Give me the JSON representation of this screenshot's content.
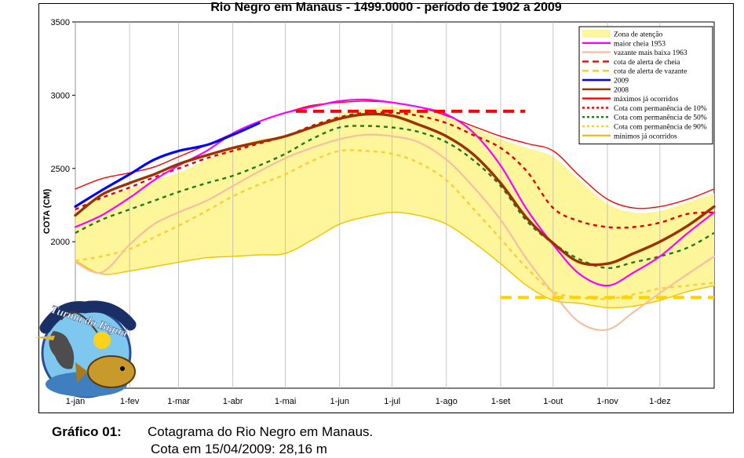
{
  "chart_data": {
    "type": "line",
    "title": "Rio Negro em Manaus - 1499.0000 - período de 1902 a 2009",
    "ylabel": "COTA (CM)",
    "xlabel": "",
    "ylim": [
      1000,
      3500
    ],
    "yticks": [
      2000,
      2500,
      3000,
      3500
    ],
    "x_tick_labels": [
      "1-jan",
      "1-fev",
      "1-mar",
      "1-abr",
      "1-mai",
      "1-jun",
      "1-jul",
      "1-ago",
      "1-set",
      "1-out",
      "1-nov",
      "1-dez"
    ],
    "x_tick_days": [
      0,
      31,
      59,
      90,
      120,
      151,
      181,
      212,
      243,
      273,
      304,
      334
    ],
    "xlim_days": [
      0,
      365
    ],
    "grid": "vertical",
    "legend_position": "top-right",
    "band": {
      "name": "Zona de atenção",
      "color": "#fff59a",
      "x": [
        0,
        15,
        31,
        45,
        59,
        75,
        90,
        105,
        120,
        135,
        151,
        166,
        181,
        196,
        212,
        227,
        243,
        258,
        273,
        288,
        304,
        319,
        334,
        350,
        365
      ],
      "lower": [
        1870,
        1780,
        1800,
        1830,
        1860,
        1890,
        1900,
        1910,
        1920,
        2010,
        2120,
        2170,
        2200,
        2180,
        2120,
        2000,
        1850,
        1700,
        1600,
        1580,
        1550,
        1560,
        1600,
        1660,
        1700
      ],
      "upper": [
        2200,
        2300,
        2360,
        2420,
        2470,
        2560,
        2640,
        2700,
        2720,
        2790,
        2870,
        2910,
        2920,
        2900,
        2850,
        2780,
        2700,
        2640,
        2580,
        2420,
        2260,
        2200,
        2210,
        2270,
        2330
      ]
    },
    "series": [
      {
        "name": "maior cheia 1953",
        "color": "#ff00ff",
        "width": 2.2,
        "dash": "",
        "x": [
          0,
          15,
          31,
          45,
          59,
          75,
          90,
          105,
          120,
          135,
          151,
          166,
          181,
          196,
          212,
          227,
          243,
          258,
          273,
          288,
          304,
          319,
          334,
          350,
          365
        ],
        "y": [
          2100,
          2180,
          2300,
          2420,
          2520,
          2620,
          2740,
          2820,
          2880,
          2920,
          2960,
          2970,
          2950,
          2920,
          2870,
          2750,
          2520,
          2220,
          1980,
          1780,
          1700,
          1790,
          1900,
          2060,
          2200
        ]
      },
      {
        "name": "vazante mais baixa 1963",
        "color": "#f5c0a2",
        "width": 2.2,
        "dash": "",
        "x": [
          0,
          15,
          31,
          45,
          59,
          75,
          90,
          105,
          120,
          135,
          151,
          166,
          181,
          196,
          212,
          227,
          243,
          258,
          273,
          288,
          304,
          319,
          334,
          350,
          365
        ],
        "y": [
          1860,
          1790,
          1980,
          2120,
          2200,
          2280,
          2380,
          2480,
          2570,
          2640,
          2700,
          2730,
          2720,
          2680,
          2560,
          2380,
          2150,
          1880,
          1650,
          1450,
          1400,
          1520,
          1650,
          1780,
          1900
        ]
      },
      {
        "name": "cota de alerta de cheia",
        "color": "#ff0000",
        "width": 4,
        "dash": "14 8",
        "x": [
          126,
          257
        ],
        "y": [
          2890,
          2890
        ]
      },
      {
        "name": "cota de alerta de vazante",
        "color": "#ffd200",
        "width": 4,
        "dash": "14 8",
        "x": [
          243,
          365
        ],
        "y": [
          1620,
          1620
        ]
      },
      {
        "name": "2009",
        "color": "#0000ff",
        "width": 3.2,
        "dash": "",
        "x": [
          0,
          15,
          31,
          45,
          59,
          75,
          90,
          105
        ],
        "y": [
          2240,
          2350,
          2460,
          2560,
          2620,
          2660,
          2730,
          2810
        ]
      },
      {
        "name": "2008",
        "color": "#993300",
        "width": 3.4,
        "dash": "",
        "x": [
          0,
          15,
          31,
          45,
          59,
          75,
          90,
          105,
          120,
          135,
          151,
          166,
          181,
          196,
          212,
          227,
          243,
          258,
          273,
          288,
          304,
          319,
          334,
          350,
          365
        ],
        "y": [
          2180,
          2320,
          2400,
          2460,
          2530,
          2590,
          2640,
          2680,
          2720,
          2780,
          2840,
          2870,
          2860,
          2800,
          2720,
          2600,
          2400,
          2160,
          1990,
          1860,
          1850,
          1920,
          2000,
          2110,
          2240
        ]
      },
      {
        "name": "máximos já ocorridos",
        "color": "#ff0000",
        "width": 1.4,
        "dash": "",
        "x": [
          0,
          15,
          31,
          45,
          59,
          75,
          90,
          105,
          120,
          135,
          151,
          166,
          181,
          196,
          212,
          227,
          243,
          258,
          273,
          288,
          304,
          319,
          334,
          350,
          365
        ],
        "y": [
          2360,
          2430,
          2470,
          2510,
          2580,
          2660,
          2740,
          2820,
          2880,
          2930,
          2950,
          2960,
          2950,
          2920,
          2860,
          2790,
          2720,
          2670,
          2620,
          2450,
          2290,
          2230,
          2240,
          2290,
          2360
        ]
      },
      {
        "name": "Cota com permanência de 10%",
        "color": "#e00000",
        "width": 2.4,
        "dash": "5 5",
        "x": [
          0,
          15,
          31,
          45,
          59,
          75,
          90,
          105,
          120,
          135,
          151,
          166,
          181,
          196,
          212,
          227,
          243,
          258,
          273,
          288,
          304,
          319,
          334,
          350,
          365
        ],
        "y": [
          2220,
          2300,
          2370,
          2440,
          2500,
          2570,
          2620,
          2670,
          2720,
          2790,
          2850,
          2880,
          2880,
          2860,
          2810,
          2730,
          2640,
          2480,
          2230,
          2140,
          2100,
          2100,
          2130,
          2190,
          2200
        ]
      },
      {
        "name": "Cota com permanência de 50%",
        "color": "#1f7a1f",
        "width": 2.4,
        "dash": "5 5",
        "x": [
          0,
          15,
          31,
          45,
          59,
          75,
          90,
          105,
          120,
          135,
          151,
          166,
          181,
          196,
          212,
          227,
          243,
          258,
          273,
          288,
          304,
          319,
          334,
          350,
          365
        ],
        "y": [
          2060,
          2150,
          2220,
          2280,
          2340,
          2400,
          2450,
          2520,
          2600,
          2700,
          2780,
          2790,
          2780,
          2750,
          2680,
          2560,
          2380,
          2140,
          1990,
          1880,
          1820,
          1860,
          1900,
          1960,
          2060
        ]
      },
      {
        "name": "Cota com permanência de 90%",
        "color": "#f7cf3a",
        "width": 2.4,
        "dash": "5 5",
        "x": [
          0,
          15,
          31,
          45,
          59,
          75,
          90,
          105,
          120,
          135,
          151,
          166,
          181,
          196,
          212,
          227,
          243,
          258,
          273,
          288,
          304,
          319,
          334,
          350,
          365
        ],
        "y": [
          1870,
          1900,
          1950,
          2030,
          2110,
          2210,
          2310,
          2390,
          2460,
          2550,
          2620,
          2620,
          2600,
          2540,
          2420,
          2230,
          2020,
          1820,
          1660,
          1620,
          1610,
          1640,
          1680,
          1700,
          1720
        ]
      },
      {
        "name": "mínimos já ocorridos",
        "color": "#f2c200",
        "width": 1.4,
        "dash": "",
        "x": [
          0,
          15,
          31,
          45,
          59,
          75,
          90,
          105,
          120,
          135,
          151,
          166,
          181,
          196,
          212,
          227,
          243,
          258,
          273,
          288,
          304,
          319,
          334,
          350,
          365
        ],
        "y": [
          1870,
          1780,
          1800,
          1830,
          1860,
          1890,
          1900,
          1910,
          1920,
          2010,
          2120,
          2170,
          2200,
          2180,
          2120,
          2000,
          1850,
          1700,
          1600,
          1580,
          1550,
          1560,
          1600,
          1660,
          1700
        ]
      }
    ],
    "legend": [
      {
        "label": "Zona de atenção",
        "kind": "band",
        "color": "#fff59a"
      },
      {
        "label": "maior cheia 1953",
        "kind": "line",
        "color": "#ff00ff",
        "dash": ""
      },
      {
        "label": "vazante mais baixa 1963",
        "kind": "line",
        "color": "#f5c0a2",
        "dash": ""
      },
      {
        "label": "cota de alerta de cheia",
        "kind": "line",
        "color": "#ff0000",
        "dash": "8 5"
      },
      {
        "label": "cota de alerta de vazante",
        "kind": "line",
        "color": "#ffd200",
        "dash": "8 5"
      },
      {
        "label": "2009",
        "kind": "line",
        "color": "#0000ff",
        "dash": ""
      },
      {
        "label": "2008",
        "kind": "line",
        "color": "#993300",
        "dash": ""
      },
      {
        "label": "máximos já ocorridos",
        "kind": "line",
        "color": "#ff0000",
        "dash": ""
      },
      {
        "label": "Cota com permanência de 10%",
        "kind": "line",
        "color": "#e00000",
        "dash": "3 3"
      },
      {
        "label": "Cota com permanência de 50%",
        "kind": "line",
        "color": "#1f7a1f",
        "dash": "3 3"
      },
      {
        "label": "Cota com permanência de 90%",
        "kind": "line",
        "color": "#f7cf3a",
        "dash": "3 3"
      },
      {
        "label": "mínimos já ocorridos",
        "kind": "line",
        "color": "#f2c200",
        "dash": ""
      }
    ]
  },
  "logo": {
    "text": "Turma do Biguá"
  },
  "caption": {
    "label": "Gráfico 01:",
    "line1": "Cotagrama do Rio Negro em Manaus.",
    "line2": "Cota em 15/04/2009: 28,16 m"
  }
}
